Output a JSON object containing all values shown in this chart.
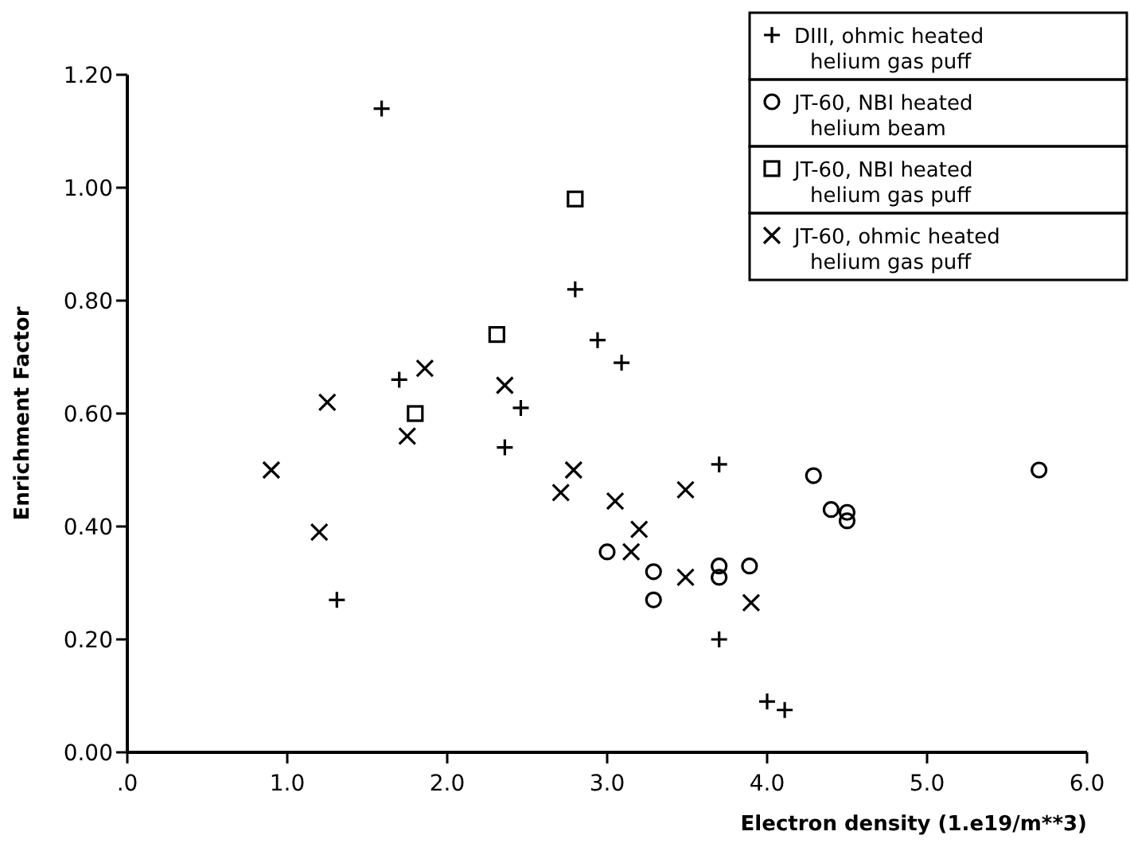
{
  "chart_data": {
    "type": "scatter",
    "xlabel": "Electron density (1.e19/m**3)",
    "ylabel": "Enrichment Factor",
    "xlim": [
      0,
      6
    ],
    "ylim": [
      0,
      1.2
    ],
    "xticks": [
      {
        "value": 0,
        "label": ".0"
      },
      {
        "value": 1,
        "label": "1.0"
      },
      {
        "value": 2,
        "label": "2.0"
      },
      {
        "value": 3,
        "label": "3.0"
      },
      {
        "value": 4,
        "label": "4.0"
      },
      {
        "value": 5,
        "label": "5.0"
      },
      {
        "value": 6,
        "label": "6.0"
      }
    ],
    "yticks": [
      {
        "value": 0,
        "label": "0.00"
      },
      {
        "value": 0.2,
        "label": "0.20"
      },
      {
        "value": 0.4,
        "label": "0.40"
      },
      {
        "value": 0.6,
        "label": "0.60"
      },
      {
        "value": 0.8,
        "label": "0.80"
      },
      {
        "value": 1,
        "label": "1.00"
      },
      {
        "value": 1.2,
        "label": "1.20"
      }
    ],
    "grid": false,
    "legend": "top right",
    "series": [
      {
        "name": "DIII, ohmic heated helium gas puff",
        "color": "#000000",
        "marker": "plus",
        "x": [
          1.59,
          2.8,
          1.7,
          2.46,
          2.36,
          1.31,
          2.94,
          3.09,
          3.7,
          3.7,
          4.0,
          4.11
        ],
        "values": [
          1.14,
          0.82,
          0.66,
          0.61,
          0.54,
          0.27,
          0.73,
          0.69,
          0.51,
          0.2,
          0.09,
          0.075
        ]
      },
      {
        "name": "JT-60, NBI heated helium beam",
        "color": "#000000",
        "marker": "circle",
        "x": [
          3.0,
          3.29,
          3.29,
          3.7,
          3.7,
          3.89,
          4.29,
          4.4,
          4.5,
          4.5,
          5.7
        ],
        "values": [
          0.355,
          0.32,
          0.27,
          0.33,
          0.31,
          0.33,
          0.49,
          0.43,
          0.425,
          0.41,
          0.5
        ]
      },
      {
        "name": "JT-60, NBI heated helium gas puff",
        "color": "#000000",
        "marker": "square",
        "x": [
          2.8,
          2.31,
          1.8
        ],
        "values": [
          0.98,
          0.74,
          0.6
        ]
      },
      {
        "name": "JT-60, ohmic heated helium gas puff",
        "color": "#000000",
        "marker": "cross",
        "x": [
          1.86,
          1.25,
          2.36,
          1.75,
          0.9,
          1.2,
          2.71,
          2.79,
          3.05,
          3.2,
          3.15,
          3.49,
          3.49,
          3.9
        ],
        "values": [
          0.68,
          0.62,
          0.65,
          0.56,
          0.5,
          0.39,
          0.46,
          0.5,
          0.445,
          0.395,
          0.355,
          0.31,
          0.465,
          0.265
        ]
      }
    ]
  }
}
